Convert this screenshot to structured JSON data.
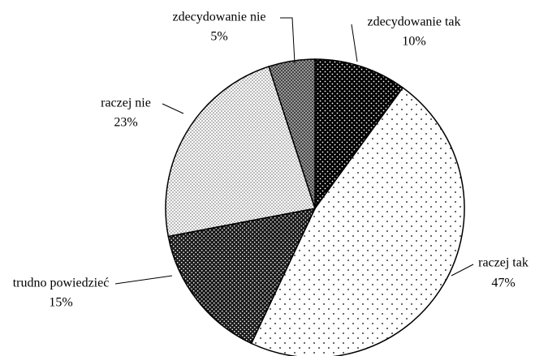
{
  "chart_data": {
    "type": "pie",
    "categories": [
      "zdecydowanie tak",
      "raczej tak",
      "trudno powiedzieć",
      "raczej nie",
      "zdecydowanie nie"
    ],
    "values": [
      10,
      47,
      15,
      23,
      5
    ],
    "value_labels": [
      "10%",
      "47%",
      "15%",
      "23%",
      "5%"
    ]
  }
}
